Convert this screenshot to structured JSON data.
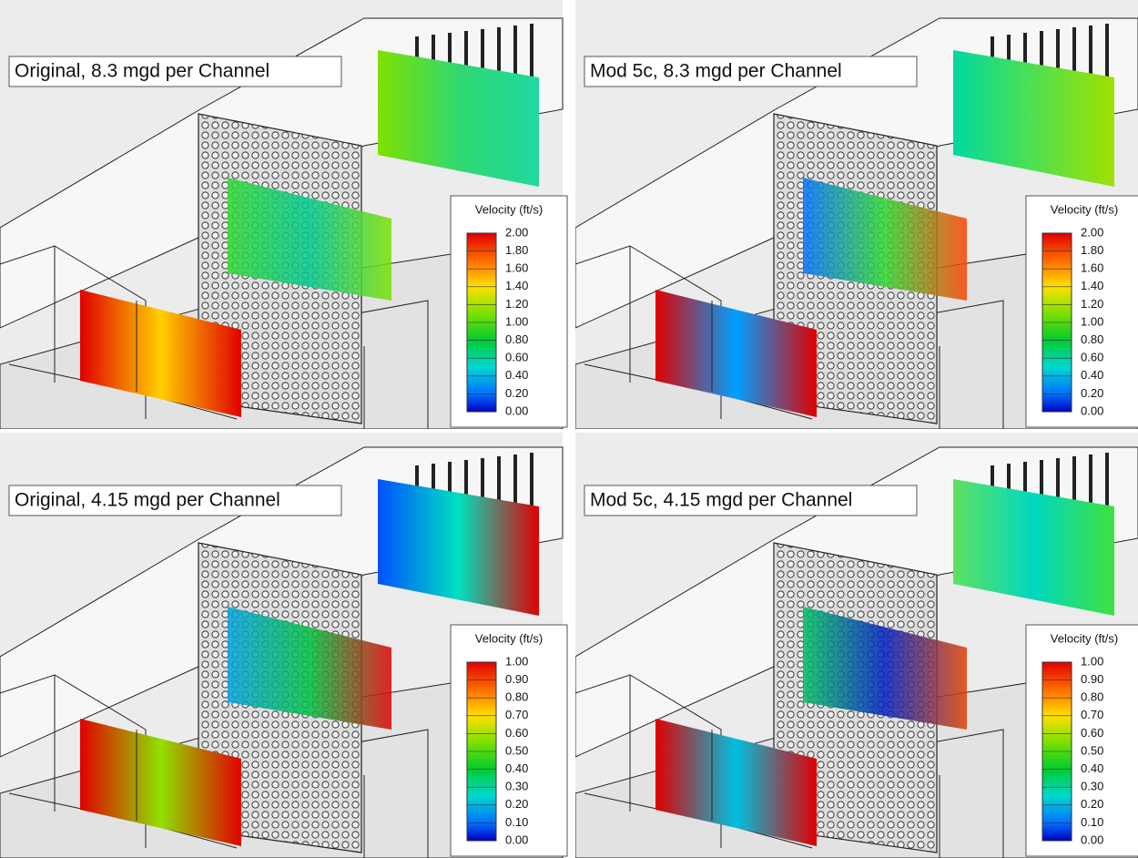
{
  "panels": [
    {
      "title": "Original, 8.3 mgd per Channel",
      "legend": {
        "title": "Velocity (ft/s)",
        "ticks": [
          {
            "value": 2,
            "label": "2.00"
          },
          {
            "value": 1.8,
            "label": "1.80"
          },
          {
            "value": 1.6,
            "label": "1.60"
          },
          {
            "value": 1.4,
            "label": "1.40"
          },
          {
            "value": 1.2,
            "label": "1.20"
          },
          {
            "value": 1,
            "label": "1.00"
          },
          {
            "value": 0.8,
            "label": "0.80"
          },
          {
            "value": 0.6,
            "label": "0.60"
          },
          {
            "value": 0.4,
            "label": "0.40"
          },
          {
            "value": 0.2,
            "label": "0.20"
          },
          {
            "value": 0,
            "label": "0.00"
          }
        ]
      }
    },
    {
      "title": "Mod 5c, 8.3 mgd per Channel",
      "legend": {
        "title": "Velocity (ft/s)",
        "ticks": [
          {
            "value": 2,
            "label": "2.00"
          },
          {
            "value": 1.8,
            "label": "1.80"
          },
          {
            "value": 1.6,
            "label": "1.60"
          },
          {
            "value": 1.4,
            "label": "1.40"
          },
          {
            "value": 1.2,
            "label": "1.20"
          },
          {
            "value": 1,
            "label": "1.00"
          },
          {
            "value": 0.8,
            "label": "0.80"
          },
          {
            "value": 0.6,
            "label": "0.60"
          },
          {
            "value": 0.4,
            "label": "0.40"
          },
          {
            "value": 0.2,
            "label": "0.20"
          },
          {
            "value": 0,
            "label": "0.00"
          }
        ]
      }
    },
    {
      "title": "Original, 4.15 mgd per Channel",
      "legend": {
        "title": "Velocity (ft/s)",
        "ticks": [
          {
            "value": 1,
            "label": "1.00"
          },
          {
            "value": 0.9,
            "label": "0.90"
          },
          {
            "value": 0.8,
            "label": "0.80"
          },
          {
            "value": 0.7,
            "label": "0.70"
          },
          {
            "value": 0.6,
            "label": "0.60"
          },
          {
            "value": 0.5,
            "label": "0.50"
          },
          {
            "value": 0.4,
            "label": "0.40"
          },
          {
            "value": 0.3,
            "label": "0.30"
          },
          {
            "value": 0.2,
            "label": "0.20"
          },
          {
            "value": 0.1,
            "label": "0.10"
          },
          {
            "value": 0,
            "label": "0.00"
          }
        ]
      }
    },
    {
      "title": "Mod 5c, 4.15 mgd per Channel",
      "legend": {
        "title": "Velocity (ft/s)",
        "ticks": [
          {
            "value": 1,
            "label": "1.00"
          },
          {
            "value": 0.9,
            "label": "0.90"
          },
          {
            "value": 0.8,
            "label": "0.80"
          },
          {
            "value": 0.7,
            "label": "0.70"
          },
          {
            "value": 0.6,
            "label": "0.60"
          },
          {
            "value": 0.5,
            "label": "0.50"
          },
          {
            "value": 0.4,
            "label": "0.40"
          },
          {
            "value": 0.3,
            "label": "0.30"
          },
          {
            "value": 0.2,
            "label": "0.20"
          },
          {
            "value": 0.1,
            "label": "0.10"
          },
          {
            "value": 0,
            "label": "0.00"
          }
        ]
      }
    }
  ]
}
